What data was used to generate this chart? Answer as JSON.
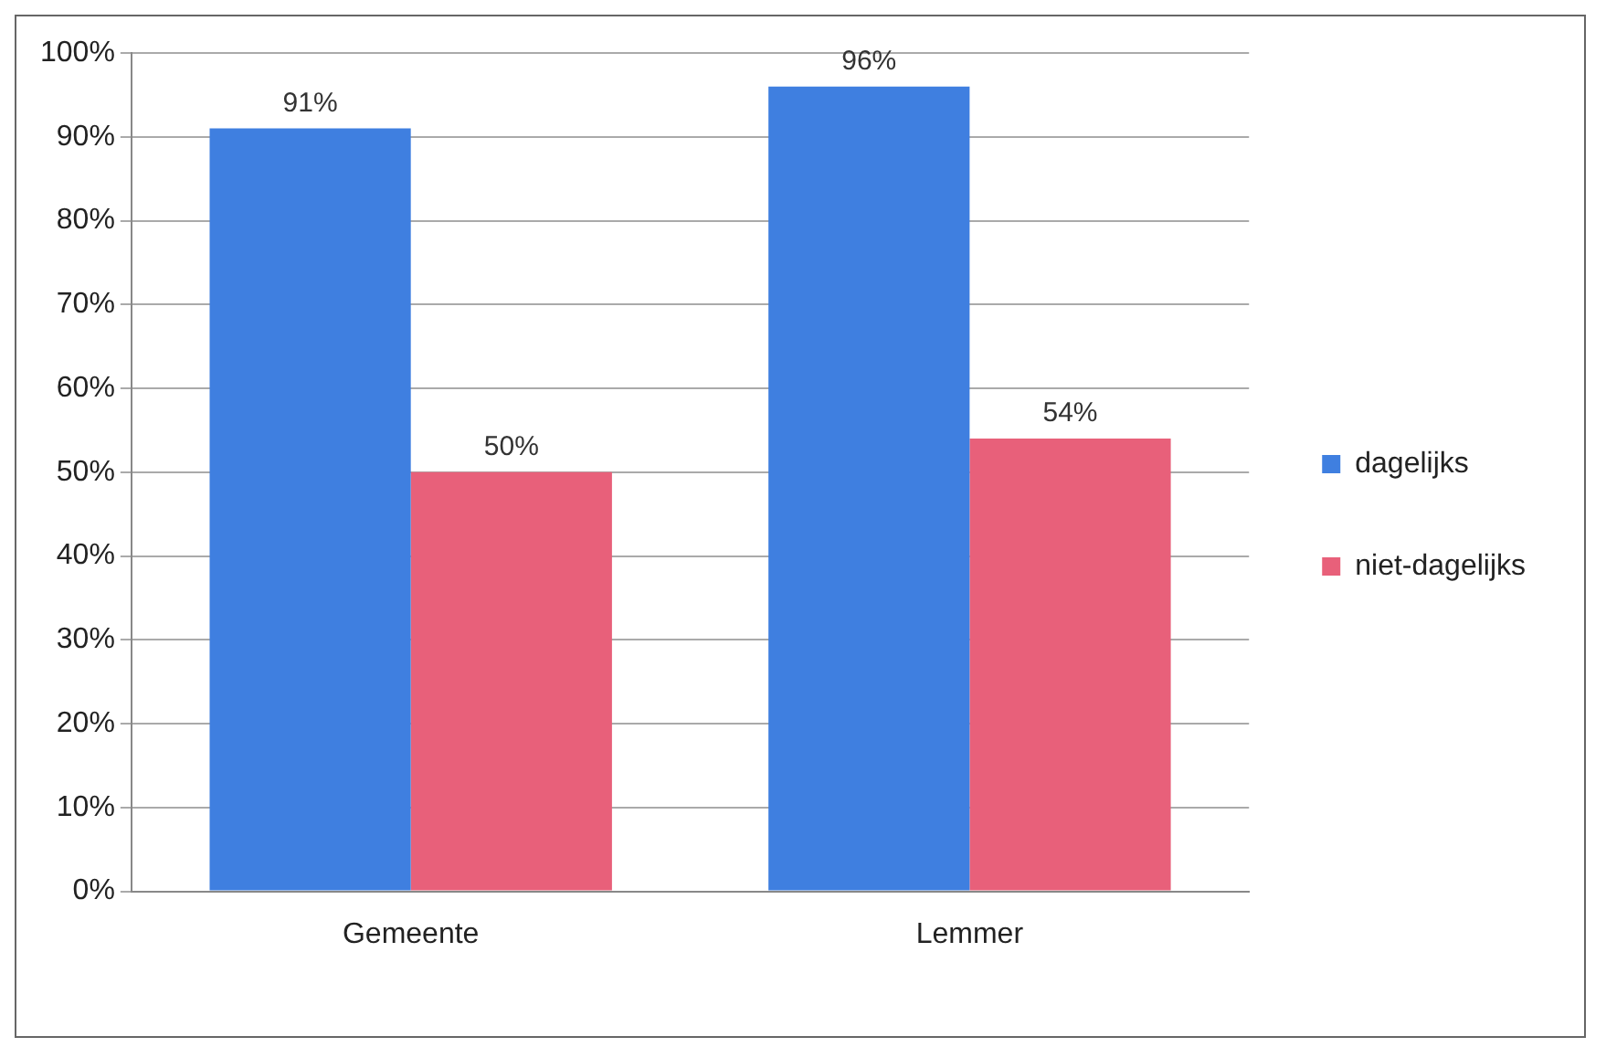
{
  "chart_data": {
    "type": "bar",
    "categories": [
      "Gemeente",
      "Lemmer"
    ],
    "series": [
      {
        "name": "dagelijks",
        "color": "#3f7fe0",
        "values": [
          91,
          96
        ]
      },
      {
        "name": "niet-dagelijks",
        "color": "#e8607a",
        "values": [
          50,
          54
        ]
      }
    ],
    "ylim": [
      0,
      100
    ],
    "yticks": [
      {
        "value": 0,
        "label": "0%"
      },
      {
        "value": 10,
        "label": "10%"
      },
      {
        "value": 20,
        "label": "20%"
      },
      {
        "value": 30,
        "label": "30%"
      },
      {
        "value": 40,
        "label": "40%"
      },
      {
        "value": 50,
        "label": "50%"
      },
      {
        "value": 60,
        "label": "60%"
      },
      {
        "value": 70,
        "label": "70%"
      },
      {
        "value": 80,
        "label": "80%"
      },
      {
        "value": 90,
        "label": "90%"
      },
      {
        "value": 100,
        "label": "100%"
      }
    ],
    "value_labels": [
      [
        "91%",
        "96%"
      ],
      [
        "50%",
        "54%"
      ]
    ],
    "grid": "y",
    "legend": "right"
  }
}
